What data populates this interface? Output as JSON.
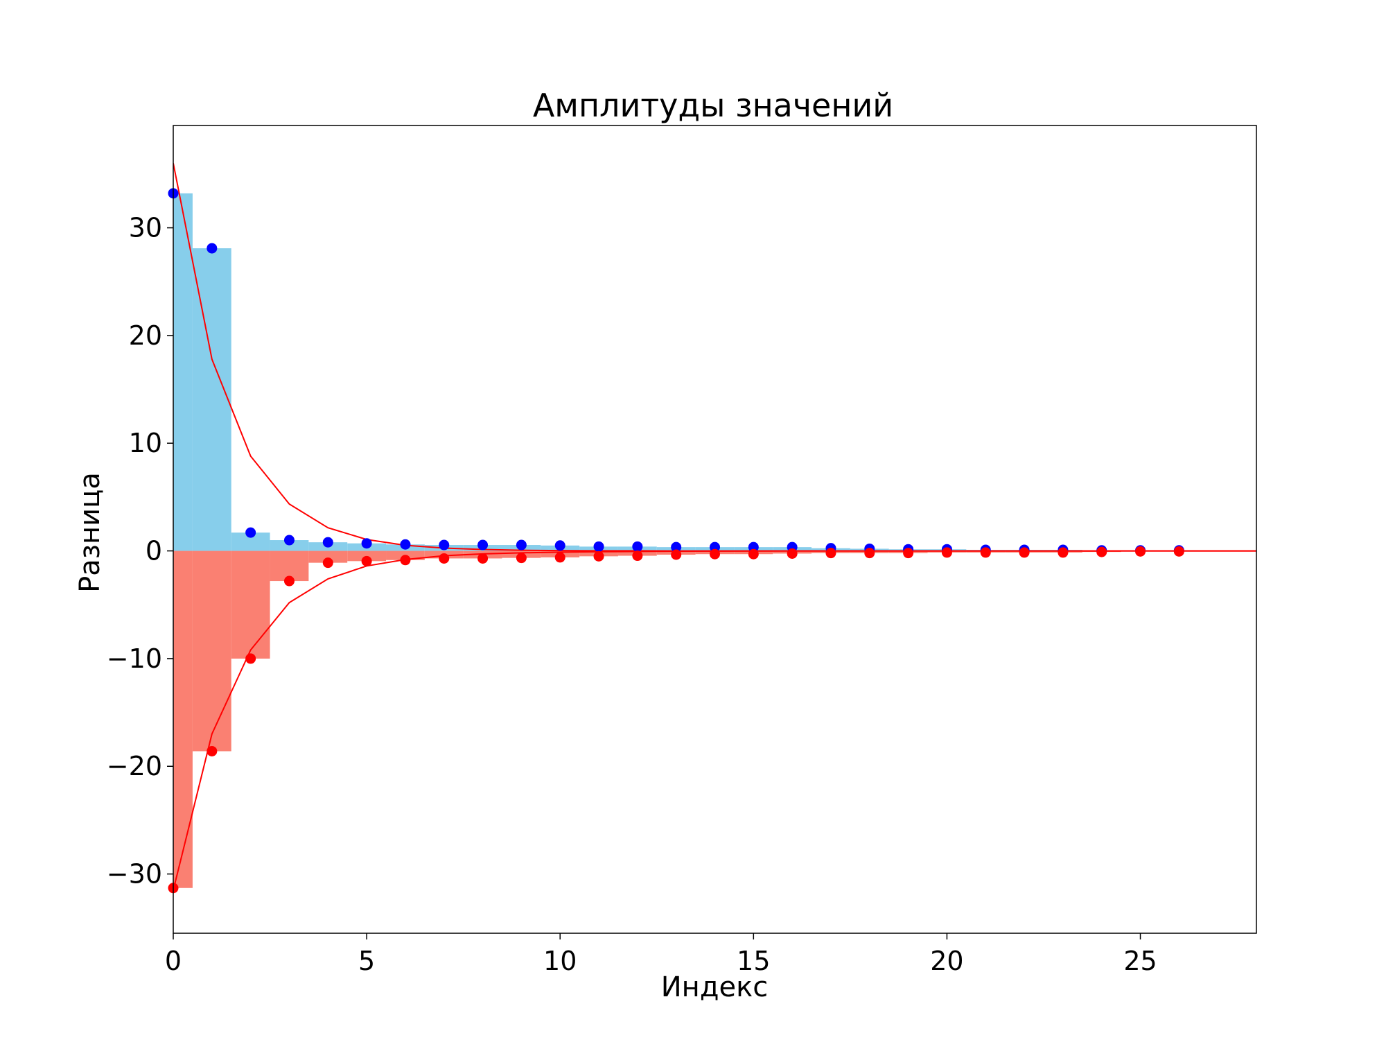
{
  "chart_data": {
    "type": "bar",
    "title": "Амплитуды значений",
    "xlabel": "Индекс",
    "ylabel": "Разница",
    "xlim": [
      0,
      28
    ],
    "ylim": [
      -35.5,
      39.5
    ],
    "xticks": [
      0,
      5,
      10,
      15,
      20,
      25
    ],
    "yticks": [
      -30,
      -20,
      -10,
      0,
      10,
      20,
      30
    ],
    "xtick_labels": [
      "0",
      "5",
      "10",
      "15",
      "20",
      "25"
    ],
    "ytick_labels": [
      "−30",
      "−20",
      "−10",
      "0",
      "10",
      "20",
      "30"
    ],
    "grid": false,
    "legend": "none",
    "x": [
      0,
      1,
      2,
      3,
      4,
      5,
      6,
      7,
      8,
      9,
      10,
      11,
      12,
      13,
      14,
      15,
      16,
      17,
      18,
      19,
      20,
      21,
      22,
      23,
      24,
      25,
      26
    ],
    "series": [
      {
        "values": [
          33.2,
          28.1,
          1.7,
          1.0,
          0.8,
          0.7,
          0.6,
          0.55,
          0.55,
          0.55,
          0.5,
          0.4,
          0.4,
          0.35,
          0.35,
          0.35,
          0.35,
          0.25,
          0.2,
          0.15,
          0.15,
          0.1,
          0.1,
          0.1,
          0.05,
          0.05,
          0.05
        ],
        "bar_color": "#87ceeb",
        "marker_color": "#0000ff"
      },
      {
        "values": [
          -31.3,
          -18.6,
          -10.0,
          -2.8,
          -1.1,
          -0.95,
          -0.85,
          -0.7,
          -0.7,
          -0.65,
          -0.6,
          -0.5,
          -0.45,
          -0.35,
          -0.3,
          -0.3,
          -0.25,
          -0.2,
          -0.2,
          -0.2,
          -0.15,
          -0.15,
          -0.15,
          -0.15,
          -0.1,
          -0.05,
          -0.05
        ],
        "bar_color": "#fa8072",
        "marker_color": "#ff0000"
      }
    ],
    "curves": [
      {
        "x": [
          0,
          1,
          2,
          3,
          4,
          5,
          6,
          7,
          8,
          9,
          10,
          11,
          12,
          13,
          14,
          15,
          16,
          17,
          18,
          19,
          20,
          21,
          22,
          23,
          24,
          25,
          26,
          27,
          28
        ],
        "values": [
          36.0,
          17.8,
          8.8,
          4.35,
          2.15,
          1.06,
          0.52,
          0.26,
          0.13,
          0.06,
          0.03,
          0.015,
          0.01,
          0,
          0,
          0,
          0,
          0,
          0,
          0,
          0,
          0,
          0,
          0,
          0,
          0,
          0,
          0,
          0
        ],
        "color": "#ff0000"
      },
      {
        "x": [
          0,
          1,
          2,
          3,
          4,
          5,
          6,
          7,
          8,
          9,
          10,
          11,
          12,
          13,
          14,
          15,
          16,
          17,
          18,
          19,
          20,
          21,
          22,
          23,
          24,
          25,
          26,
          27,
          28
        ],
        "values": [
          -31.5,
          -17.0,
          -9.2,
          -4.8,
          -2.6,
          -1.4,
          -0.8,
          -0.45,
          -0.28,
          -0.18,
          -0.12,
          -0.08,
          -0.05,
          -0.03,
          -0.02,
          -0.01,
          0,
          0,
          0,
          0,
          0,
          0,
          0,
          0,
          0,
          0,
          0,
          0,
          0
        ],
        "color": "#ff0000"
      }
    ]
  }
}
